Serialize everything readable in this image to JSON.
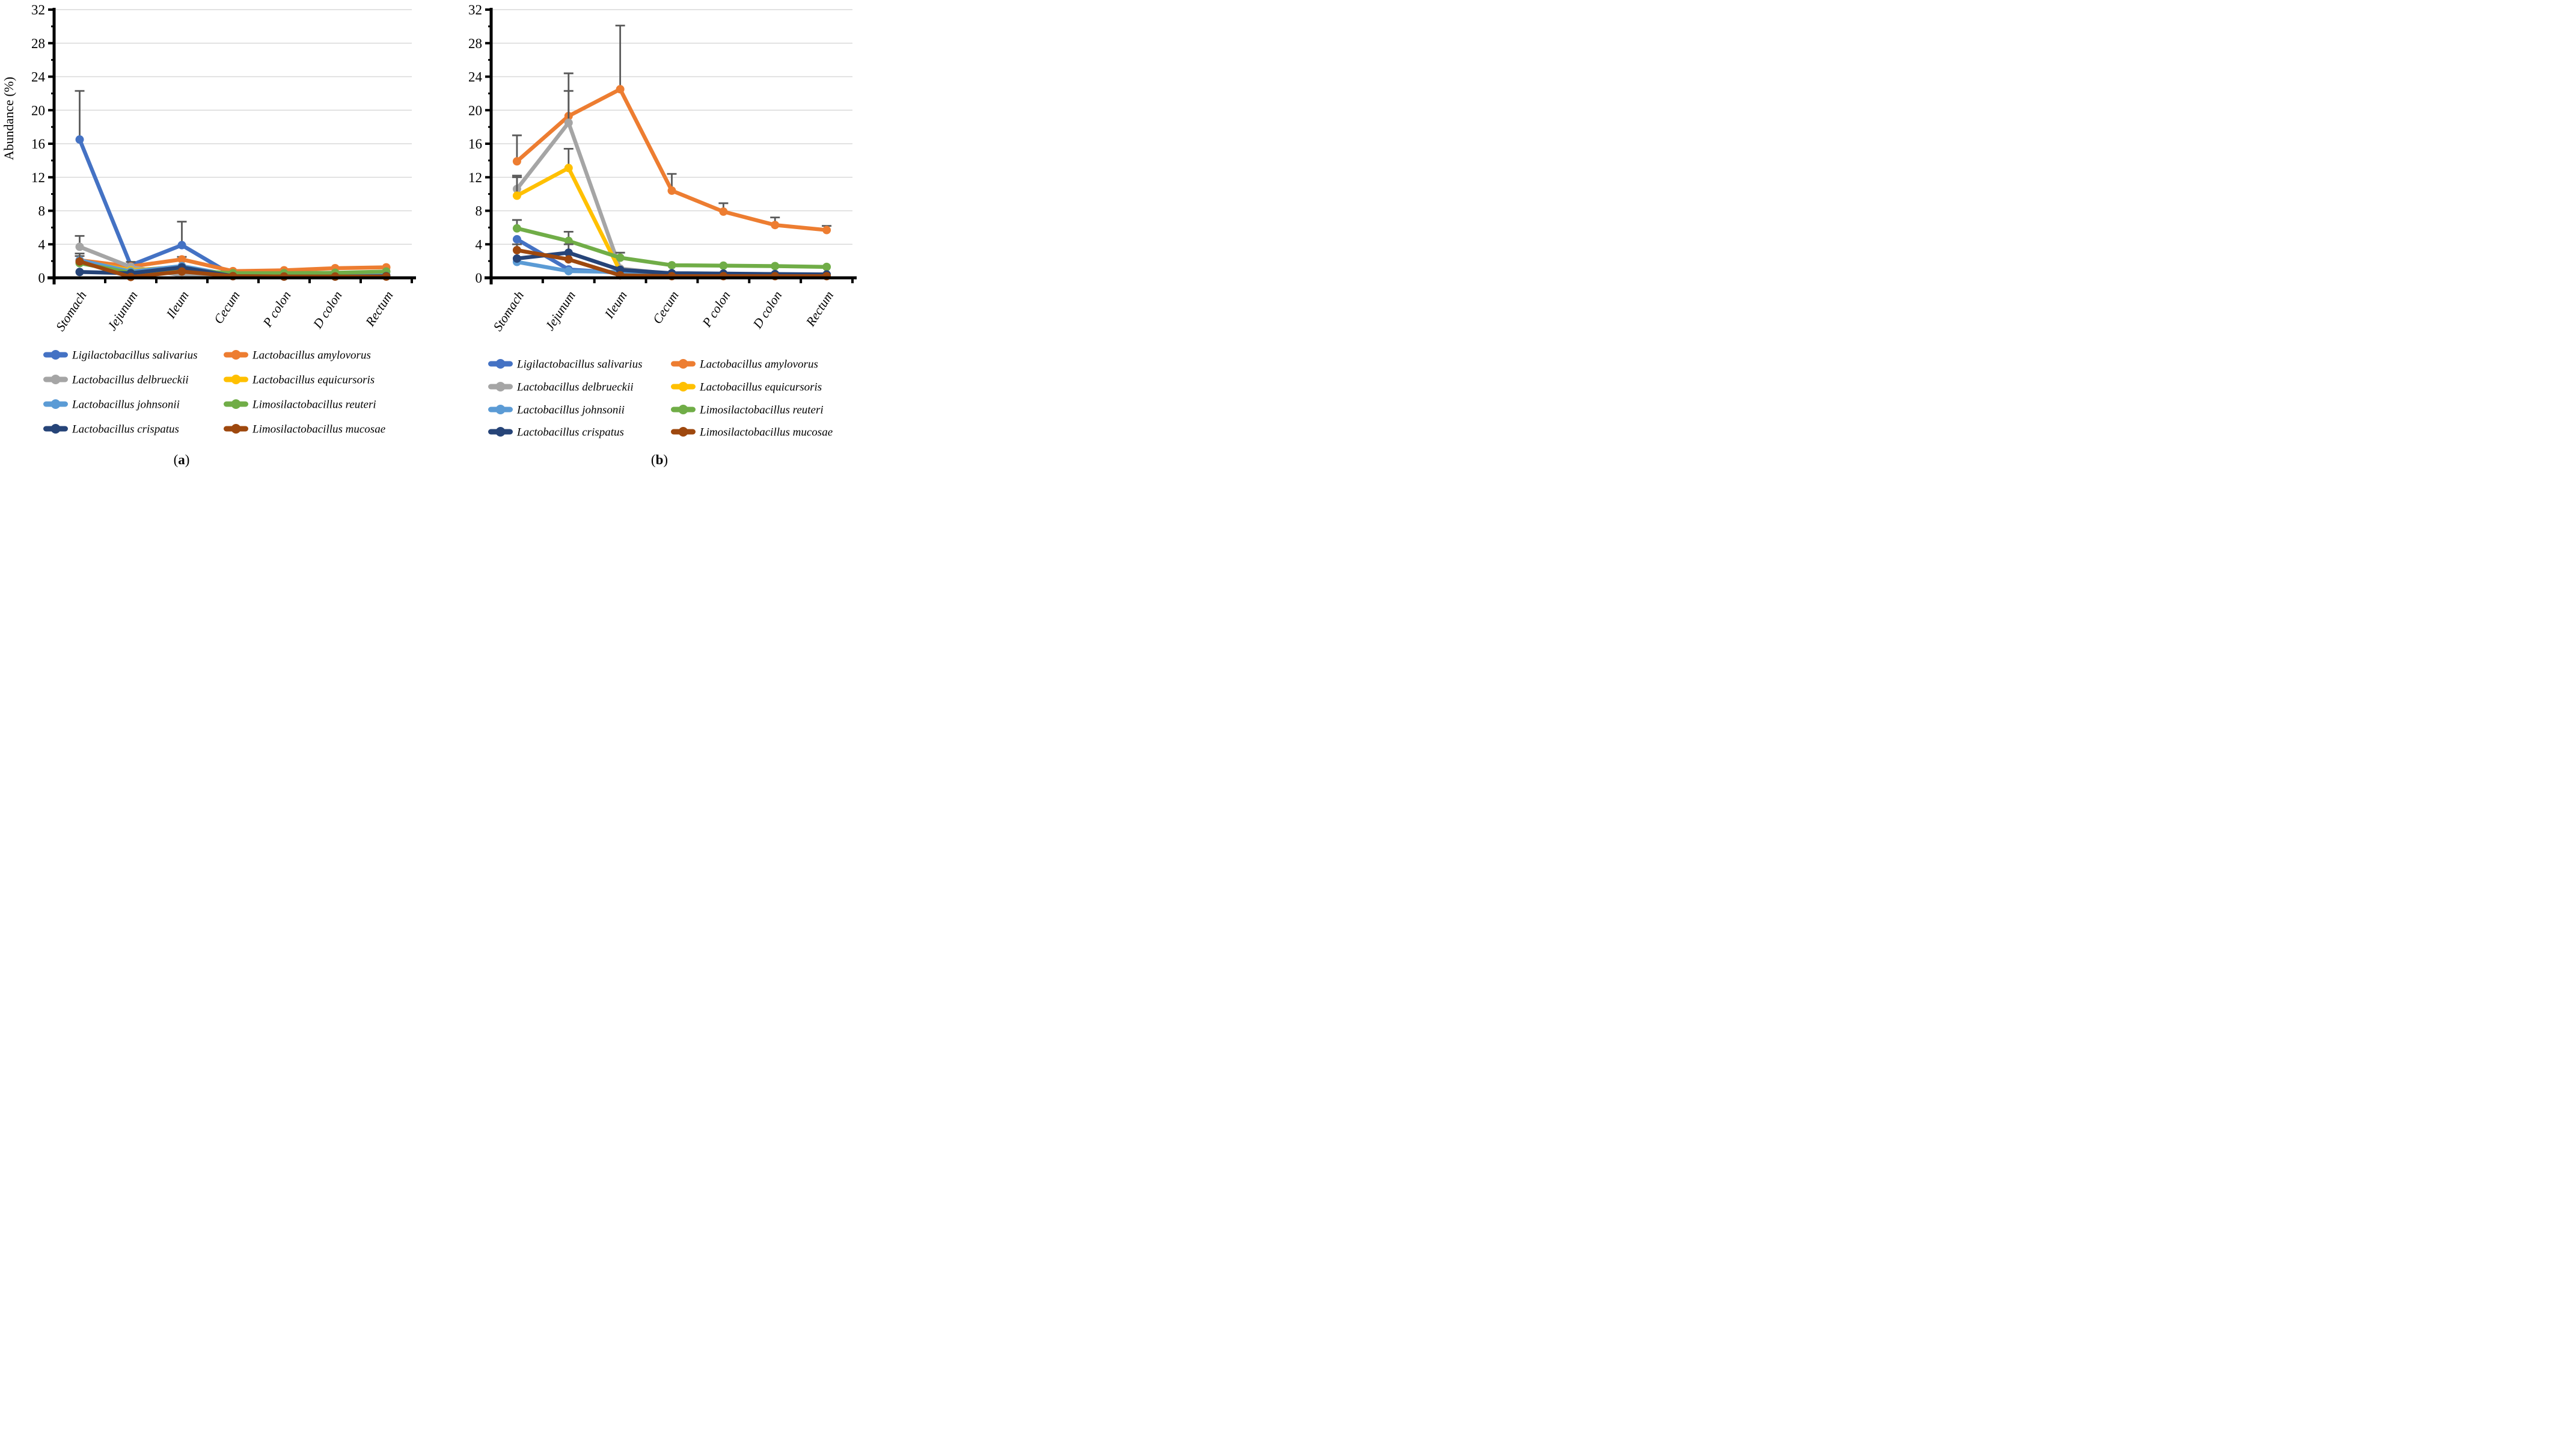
{
  "figure": {
    "background": "#FFFFFF",
    "grid_color": "#D9D9D9",
    "axis_color": "#000000",
    "error_bar_color": "#595959",
    "tick_label_color": "#000000",
    "y_axis_title": "Abundance (%)",
    "caption_a": "a",
    "caption_b": "b"
  },
  "chart_data": [
    {
      "type": "line",
      "panel_caption": "(a)",
      "title": "",
      "xlabel": "",
      "ylabel": "Abundance (%)",
      "ylim": [
        0,
        32
      ],
      "ytick_interval": 4,
      "yminor_interval": 2,
      "grid": true,
      "legend_position": "bottom-two-columns",
      "categories": [
        "Stomach",
        "Jejunum",
        "Ileum",
        "Cecum",
        "P colon",
        "D colon",
        "Rectum"
      ],
      "series": [
        {
          "name": "Ligilactobacillus salivarius",
          "color": "#4472C4",
          "values": [
            16.5,
            1.5,
            3.9,
            0.3,
            0.25,
            0.25,
            0.3
          ],
          "err_top": [
            22.3,
            null,
            6.7,
            null,
            null,
            null,
            null
          ]
        },
        {
          "name": "Lactobacillus amylovorus",
          "color": "#ED7D31",
          "values": [
            2.1,
            1.35,
            2.2,
            0.8,
            0.9,
            1.15,
            1.25
          ],
          "err_top": [
            null,
            1.9,
            2.5,
            null,
            null,
            null,
            null
          ]
        },
        {
          "name": "Lactobacillus delbrueckii",
          "color": "#A5A5A5",
          "values": [
            3.7,
            1.3,
            0.3,
            0.2,
            0.15,
            0.15,
            0.15
          ],
          "err_top": [
            5.0,
            null,
            null,
            null,
            null,
            null,
            null
          ]
        },
        {
          "name": "Lactobacillus equicursoris",
          "color": "#FFC000",
          "values": [
            2.0,
            0.9,
            1.3,
            0.25,
            0.2,
            0.2,
            0.25
          ],
          "err_top": [
            null,
            null,
            null,
            null,
            null,
            null,
            null
          ]
        },
        {
          "name": "Lactobacillus johnsonii",
          "color": "#5B9BD5",
          "values": [
            2.1,
            0.75,
            1.4,
            0.3,
            0.25,
            0.25,
            0.3
          ],
          "err_top": [
            2.6,
            null,
            null,
            null,
            null,
            null,
            null
          ]
        },
        {
          "name": "Limosilactobacillus reuteri",
          "color": "#70AD47",
          "values": [
            1.75,
            0.6,
            0.9,
            0.55,
            0.55,
            0.6,
            0.75
          ],
          "err_top": [
            null,
            null,
            null,
            null,
            null,
            null,
            null
          ]
        },
        {
          "name": "Lactobacillus crispatus",
          "color": "#264478",
          "values": [
            0.7,
            0.55,
            1.25,
            0.2,
            0.15,
            0.15,
            0.2
          ],
          "err_top": [
            null,
            null,
            null,
            null,
            null,
            null,
            null
          ]
        },
        {
          "name": "Limosilactobacillus mucosae",
          "color": "#9E480E",
          "values": [
            1.95,
            0.1,
            0.75,
            0.2,
            0.15,
            0.15,
            0.15
          ],
          "err_top": [
            2.9,
            null,
            null,
            null,
            null,
            null,
            null
          ]
        }
      ]
    },
    {
      "type": "line",
      "panel_caption": "(b)",
      "title": "",
      "xlabel": "",
      "ylabel": "",
      "ylim": [
        0,
        32
      ],
      "ytick_interval": 4,
      "yminor_interval": 2,
      "grid": true,
      "legend_position": "bottom-two-columns",
      "categories": [
        "Stomach",
        "Jejunum",
        "Ileum",
        "Cecum",
        "P colon",
        "D colon",
        "Rectum"
      ],
      "series": [
        {
          "name": "Ligilactobacillus salivarius",
          "color": "#4472C4",
          "values": [
            4.6,
            1.0,
            0.6,
            0.35,
            0.3,
            0.3,
            0.3
          ],
          "err_top": [
            null,
            null,
            null,
            null,
            null,
            null,
            null
          ]
        },
        {
          "name": "Lactobacillus amylovorus",
          "color": "#ED7D31",
          "values": [
            13.9,
            19.3,
            22.5,
            10.4,
            7.9,
            6.3,
            5.7
          ],
          "err_top": [
            17.0,
            24.4,
            30.1,
            12.4,
            8.9,
            7.2,
            6.2
          ]
        },
        {
          "name": "Lactobacillus delbrueckii",
          "color": "#A5A5A5",
          "values": [
            10.6,
            18.5,
            1.1,
            0.45,
            0.35,
            0.35,
            0.35
          ],
          "err_top": [
            12.2,
            22.3,
            null,
            null,
            null,
            null,
            null
          ]
        },
        {
          "name": "Lactobacillus equicursoris",
          "color": "#FFC000",
          "values": [
            9.8,
            13.1,
            0.8,
            0.3,
            0.25,
            0.25,
            0.25
          ],
          "err_top": [
            12.0,
            15.4,
            null,
            null,
            null,
            null,
            null
          ]
        },
        {
          "name": "Lactobacillus johnsonii",
          "color": "#5B9BD5",
          "values": [
            1.9,
            0.8,
            0.7,
            0.35,
            0.3,
            0.3,
            0.3
          ],
          "err_top": [
            null,
            null,
            null,
            null,
            null,
            null,
            null
          ]
        },
        {
          "name": "Limosilactobacillus reuteri",
          "color": "#70AD47",
          "values": [
            5.9,
            4.4,
            2.4,
            1.5,
            1.45,
            1.4,
            1.3
          ],
          "err_top": [
            6.9,
            5.5,
            3.0,
            null,
            null,
            null,
            null
          ]
        },
        {
          "name": "Lactobacillus crispatus",
          "color": "#264478",
          "values": [
            2.3,
            3.0,
            0.95,
            0.55,
            0.5,
            0.45,
            0.4
          ],
          "err_top": [
            null,
            4.0,
            null,
            null,
            null,
            null,
            null
          ]
        },
        {
          "name": "Limosilactobacillus mucosae",
          "color": "#9E480E",
          "values": [
            3.3,
            2.2,
            0.3,
            0.2,
            0.2,
            0.2,
            0.2
          ],
          "err_top": [
            4.0,
            null,
            null,
            null,
            null,
            null,
            null
          ]
        }
      ]
    }
  ]
}
